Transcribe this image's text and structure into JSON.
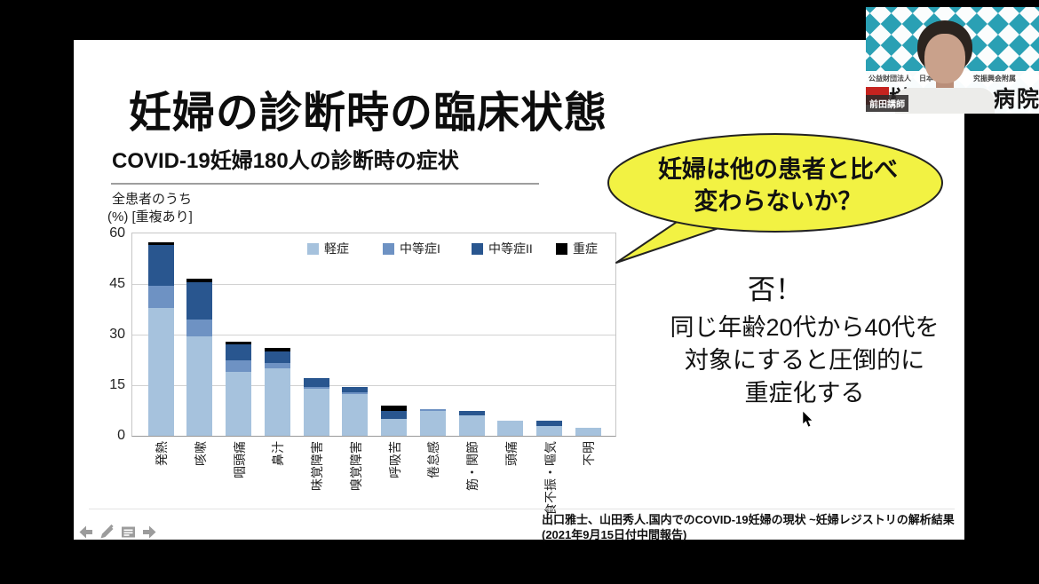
{
  "slide": {
    "title": "妊婦の診断時の臨床状態",
    "subtitle": "COVID-19妊婦180人の診断時の症状",
    "bubble": {
      "line1": "妊婦は他の患者と比べ",
      "line2": "変わらないか？",
      "fill": "#f2f243",
      "border": "#222222"
    },
    "answer": {
      "exclaim": "否！",
      "line1": "同じ年齢20代から40代を",
      "line2": "対象にすると圧倒的に",
      "line3": "重症化する"
    },
    "citation_line1": "出口雅士、山田秀人.国内でのCOVID-19妊婦の現状 ~妊婦レジストリの解析結果",
    "citation_line2": "(2021年9月15日付中間報告)"
  },
  "chart_data": {
    "type": "bar",
    "stacked": true,
    "title": "COVID-19妊婦180人の診断時の症状",
    "ylabel_line1": "全患者のうち",
    "ylabel_line2": "(%) [重複あり]",
    "ylim": [
      0,
      60
    ],
    "yticks": [
      0,
      15,
      30,
      45,
      60
    ],
    "grid": true,
    "legend_position": "top-inside",
    "categories": [
      "発熱",
      "咳嗽",
      "咽頭痛",
      "鼻汁",
      "味覚障害",
      "嗅覚障害",
      "呼吸苦",
      "倦怠感",
      "筋・関節",
      "頭痛",
      "食不振・嘔気",
      "不明"
    ],
    "series": [
      {
        "name": "軽症",
        "color": "#a6c2dd",
        "values": [
          38,
          29.5,
          19,
          20,
          14,
          12.5,
          5,
          7.5,
          6,
          4.5,
          3,
          2.5
        ]
      },
      {
        "name": "中等症I",
        "color": "#6e92c3",
        "values": [
          6.5,
          5,
          3.5,
          1.5,
          0.5,
          0.5,
          0,
          0.5,
          0,
          0,
          0,
          0
        ]
      },
      {
        "name": "中等症II",
        "color": "#29568f",
        "values": [
          12,
          11,
          4.5,
          3.5,
          2.5,
          1.5,
          2.5,
          0,
          1.5,
          0,
          1.5,
          0
        ]
      },
      {
        "name": "重症",
        "color": "#000000",
        "values": [
          1,
          1,
          1,
          1,
          0,
          0,
          1.5,
          0,
          0,
          0,
          0,
          0
        ]
      }
    ]
  },
  "webcam": {
    "name_tag": "前田講師",
    "wall_small_left": "公益財団法人",
    "wall_small_mid": "日本",
    "wall_small_right": "究振興会附属",
    "wall_large_left": "榊原",
    "wall_large_right": "病院",
    "teal": "#2aa0b4"
  }
}
